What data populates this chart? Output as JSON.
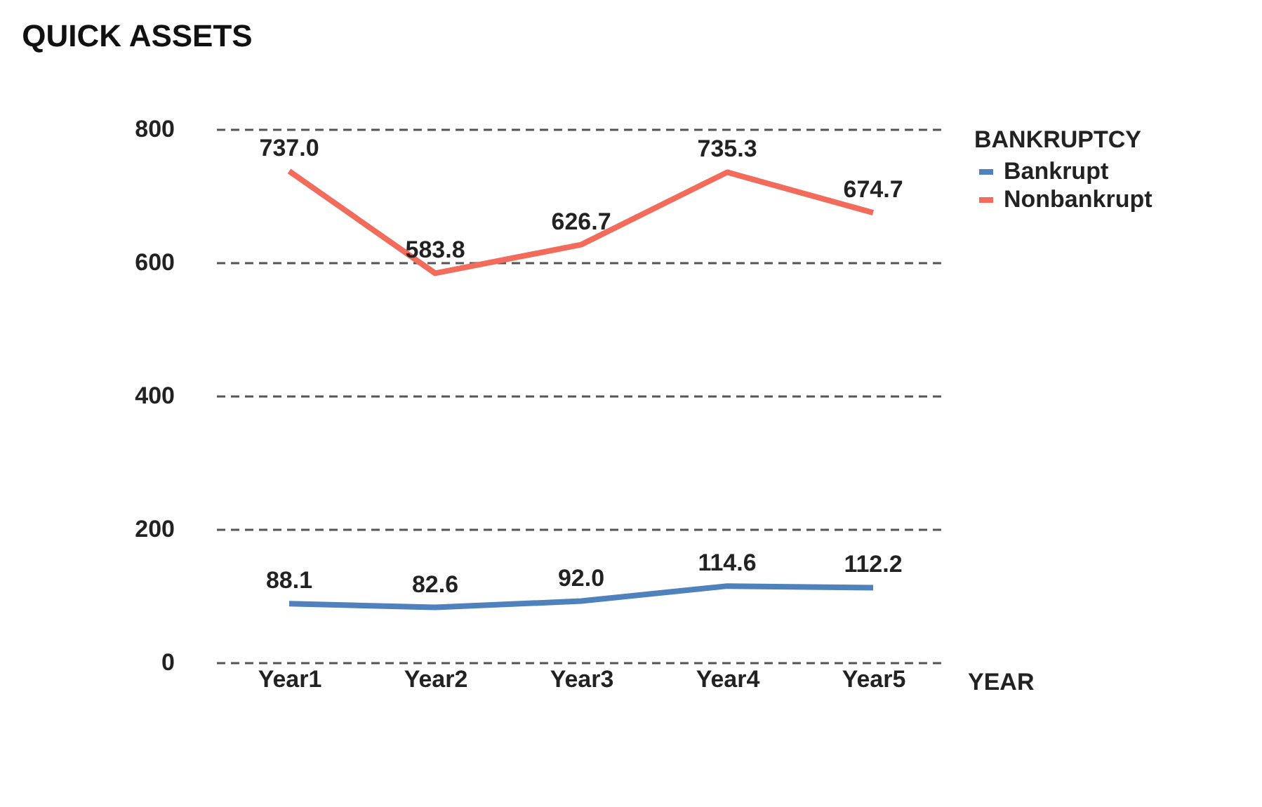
{
  "chart_data": {
    "type": "line",
    "title": "QUICK ASSETS",
    "xlabel": "YEAR",
    "legend_title": "BANKRUPTCY",
    "categories": [
      "Year1",
      "Year2",
      "Year3",
      "Year4",
      "Year5"
    ],
    "series": [
      {
        "name": "Bankrupt",
        "color": "#4f81bd",
        "values": [
          88.1,
          82.6,
          92.0,
          114.6,
          112.2
        ],
        "value_labels": [
          "88.1",
          "82.6",
          "92.0",
          "114.6",
          "112.2"
        ]
      },
      {
        "name": "Nonbankrupt",
        "color": "#f26b5b",
        "values": [
          737.0,
          583.8,
          626.7,
          735.3,
          674.7
        ],
        "value_labels": [
          "737.0",
          "583.8",
          "626.7",
          "735.3",
          "674.7"
        ]
      }
    ],
    "ylim": [
      0,
      800
    ],
    "yticks": [
      0,
      200,
      400,
      600,
      800
    ],
    "grid": "y",
    "legend": "top right",
    "marker": "none",
    "line_style": "solid"
  }
}
